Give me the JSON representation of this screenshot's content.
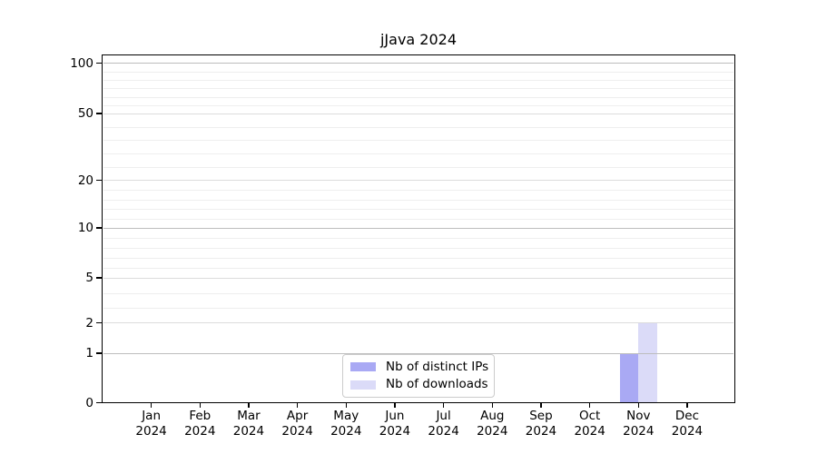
{
  "chart_data": {
    "type": "bar",
    "title": "jJava 2024",
    "categories": [
      {
        "month": "Jan",
        "year": "2024"
      },
      {
        "month": "Feb",
        "year": "2024"
      },
      {
        "month": "Mar",
        "year": "2024"
      },
      {
        "month": "Apr",
        "year": "2024"
      },
      {
        "month": "May",
        "year": "2024"
      },
      {
        "month": "Jun",
        "year": "2024"
      },
      {
        "month": "Jul",
        "year": "2024"
      },
      {
        "month": "Aug",
        "year": "2024"
      },
      {
        "month": "Sep",
        "year": "2024"
      },
      {
        "month": "Oct",
        "year": "2024"
      },
      {
        "month": "Nov",
        "year": "2024"
      },
      {
        "month": "Dec",
        "year": "2024"
      }
    ],
    "series": [
      {
        "name": "Nb of distinct IPs",
        "color": "#a9a9f4",
        "values": [
          0,
          0,
          0,
          0,
          0,
          0,
          0,
          0,
          0,
          0,
          1,
          0
        ]
      },
      {
        "name": "Nb of downloads",
        "color": "#dbdbf8",
        "values": [
          0,
          0,
          0,
          0,
          0,
          0,
          0,
          0,
          0,
          0,
          2,
          0
        ]
      }
    ],
    "y_axis": {
      "ticks": [
        0,
        1,
        2,
        5,
        10,
        20,
        50,
        100
      ],
      "scale": "log-like",
      "range": [
        0,
        100
      ]
    },
    "legend": {
      "entries": [
        "Nb of distinct IPs",
        "Nb of downloads"
      ],
      "position": "lower-center",
      "border_color": "#cccccc"
    },
    "grid": {
      "major": true,
      "minor": true,
      "decade_line_color": "#bdbdbd",
      "major_line_color": "#dcdcdc",
      "minor_line_color": "#eeeeee"
    }
  }
}
